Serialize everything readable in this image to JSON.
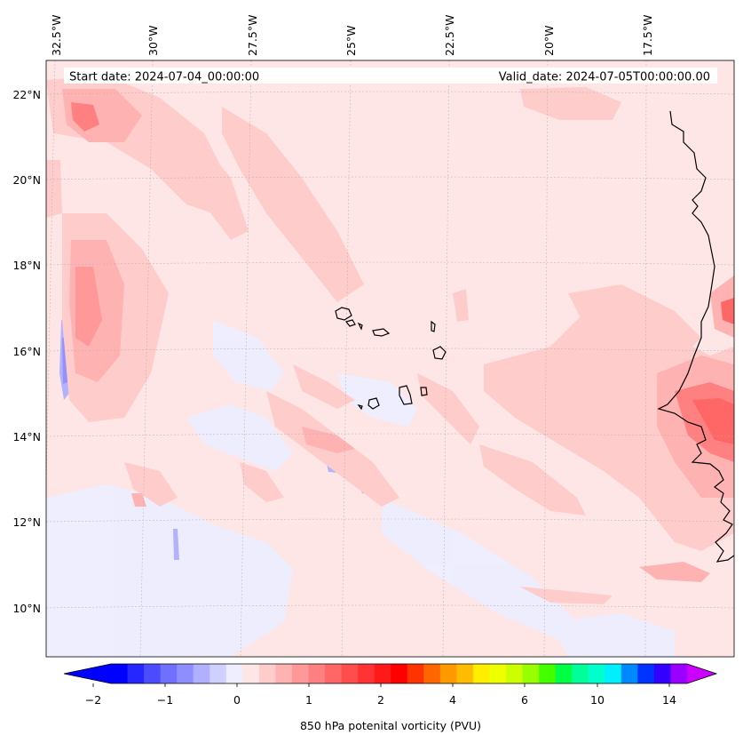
{
  "header": {
    "start_date": "Start date: 2024-07-04_00:00:00",
    "valid_date": "Valid_date: 2024-07-05T00:00:00.00"
  },
  "lon_labels": [
    "32.5°W",
    "30°W",
    "27.5°W",
    "25°W",
    "22.5°W",
    "20°W",
    "17.5°W"
  ],
  "lat_labels": [
    "22°N",
    "20°N",
    "18°N",
    "16°N",
    "14°N",
    "12°N",
    "10°N"
  ],
  "colorbar": {
    "title": "850 hPa potenital vorticity (PVU)",
    "tick_labels": [
      "−2",
      "−1",
      "0",
      "1",
      "2",
      "4",
      "6",
      "10",
      "14"
    ],
    "colors": [
      "#0000ff",
      "#2626ff",
      "#4c4cff",
      "#7070ff",
      "#8e8eff",
      "#b0b0ff",
      "#d0d0ff",
      "#eeeeff",
      "#ffe6e6",
      "#ffcccc",
      "#ffb2b2",
      "#ff9999",
      "#ff8080",
      "#ff6666",
      "#ff4c4c",
      "#ff3333",
      "#ff1a1a",
      "#ff0000",
      "#ff3300",
      "#ff6600",
      "#ff9900",
      "#ffbb00",
      "#ffee00",
      "#eeff00",
      "#ccff00",
      "#99ff00",
      "#44ff00",
      "#00ff44",
      "#00ff99",
      "#00ffcc",
      "#00eeff",
      "#0088ff",
      "#0033ff",
      "#3300ff",
      "#9900ff"
    ],
    "under_color": "#0000ff",
    "over_color": "#cc00ff"
  }
}
